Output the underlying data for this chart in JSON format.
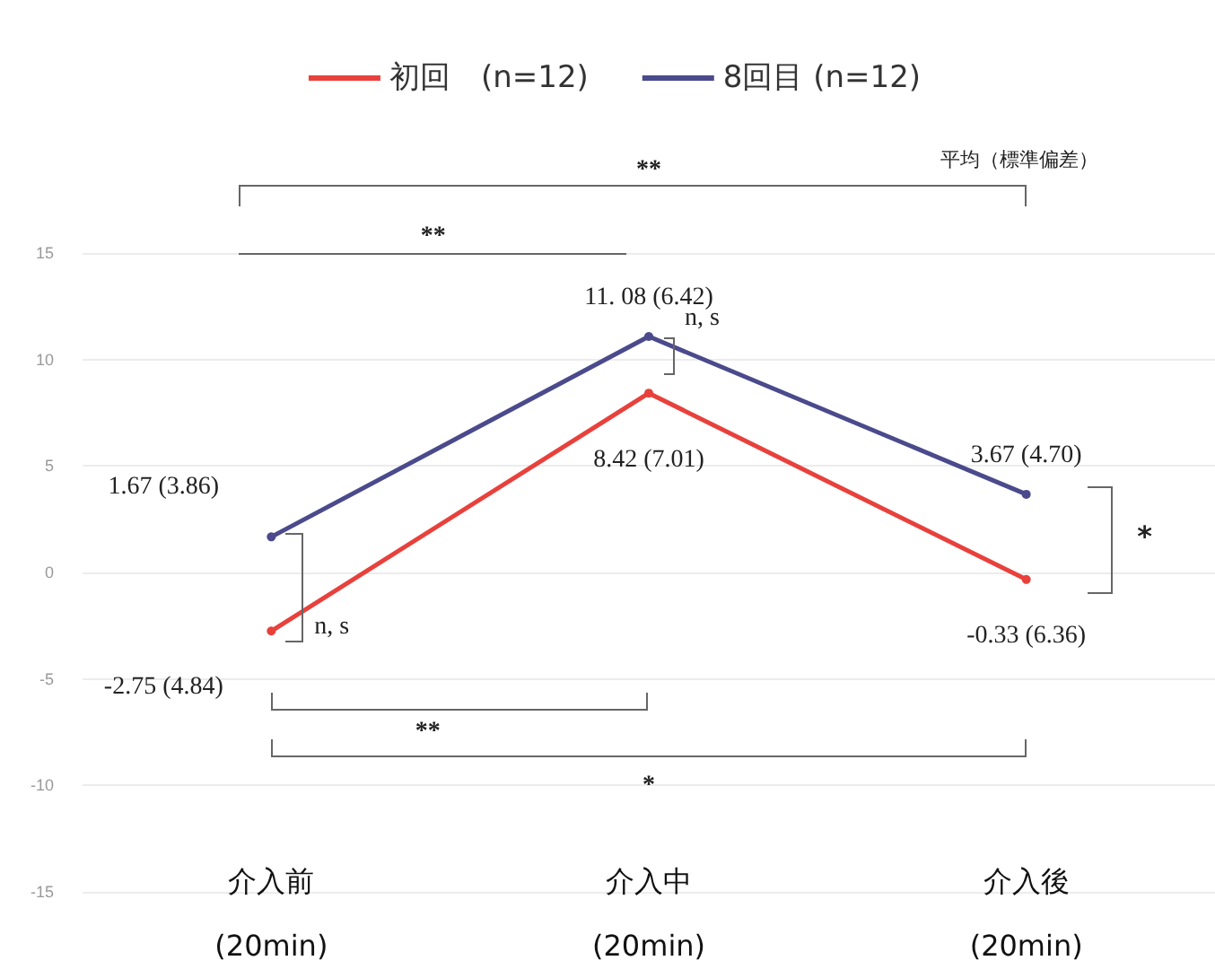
{
  "chart_data": {
    "type": "line",
    "categories": [
      "介入前\n(20min)",
      "介入中\n(20min)",
      "介入後\n(20min)"
    ],
    "series": [
      {
        "name": "初回　(n=12)",
        "color": "#e8413c",
        "values": [
          -2.75,
          8.42,
          -0.33
        ],
        "value_labels": [
          "-2.75 (4.84)",
          "8.42 (7.01)",
          "-0.33 (6.36)"
        ]
      },
      {
        "name": "8回目 (n=12)",
        "color": "#4a4a8c",
        "values": [
          1.67,
          11.08,
          3.67
        ],
        "value_labels": [
          "1.67 (3.86)",
          "11. 08 (6.42)",
          "3.67 (4.70)"
        ]
      }
    ],
    "ylim": [
      -15,
      15
    ],
    "yticks": [
      -15,
      -10,
      -5,
      0,
      5,
      10,
      15
    ],
    "grid": "y",
    "legend": "top",
    "marker": "circle",
    "line_style": "solid",
    "annotations": [
      "平均（標準偏差）",
      "**",
      "**",
      "n, s",
      "n, s",
      "*",
      "**",
      "*"
    ]
  }
}
